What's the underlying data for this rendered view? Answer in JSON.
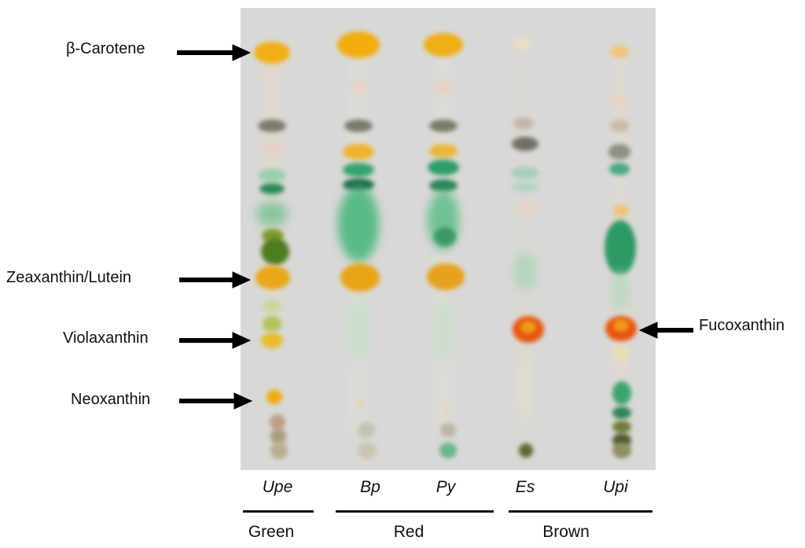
{
  "labels": {
    "beta_carotene": "β-Carotene",
    "zeaxanthin_lutein": "Zeaxanthin/Lutein",
    "violaxanthin": "Violaxanthin",
    "neoxanthin": "Neoxanthin",
    "fucoxanthin": "Fucoxanthin"
  },
  "lanes": [
    "Upe",
    "Bp",
    "Py",
    "Es",
    "Upi"
  ],
  "groups": [
    "Green",
    "Red",
    "Brown"
  ],
  "colors": {
    "plate": "#d7d7d5",
    "carotenoid_yellow": "#f0b21a",
    "chlorophyll_green": "#2f9a63",
    "fucoxanthin_orange": "#e8560f",
    "gray_band": "#7e7e72"
  }
}
